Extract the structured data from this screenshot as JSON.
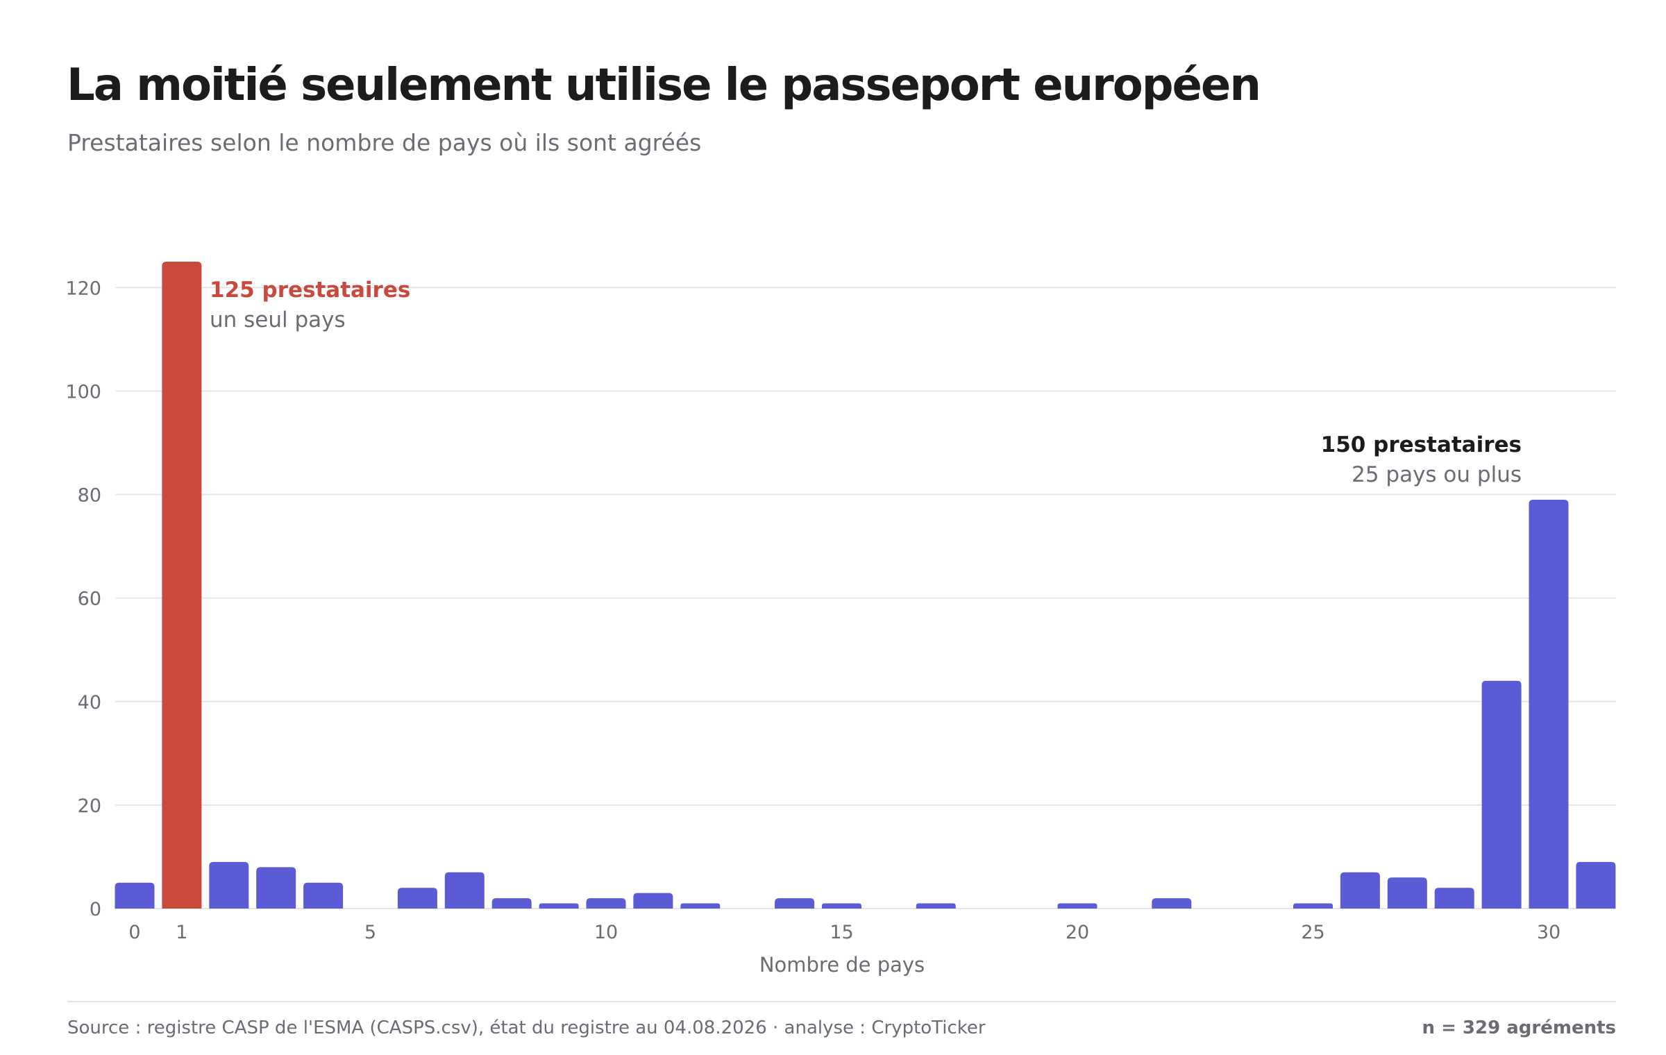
{
  "header": {
    "title": "La moitié seulement utilise le passeport européen",
    "subtitle": "Prestataires selon le nombre de pays où ils sont agréés"
  },
  "footer": {
    "source": "Source : registre CASP de l'ESMA (CASPS.csv), état du registre au 04.08.2026 · analyse : CryptoTicker",
    "count": "n = 329 agréments"
  },
  "colors": {
    "bar": "#5b5bd6",
    "highlight": "#c94a3d",
    "text": "#1c1c1f",
    "muted": "#6b6b73",
    "grid": "#e6e6e9"
  },
  "chart_data": {
    "type": "bar",
    "x": [
      0,
      1,
      2,
      3,
      4,
      5,
      6,
      7,
      8,
      9,
      10,
      11,
      12,
      13,
      14,
      15,
      16,
      17,
      18,
      19,
      20,
      21,
      22,
      23,
      24,
      25,
      26,
      27,
      28,
      29,
      30,
      31
    ],
    "values": [
      5,
      125,
      9,
      8,
      5,
      0,
      4,
      7,
      2,
      1,
      2,
      3,
      1,
      0,
      2,
      1,
      0,
      1,
      0,
      0,
      1,
      0,
      2,
      0,
      0,
      1,
      7,
      6,
      4,
      44,
      79,
      9
    ],
    "highlight_x": 1,
    "xlabel": "Nombre de pays",
    "ylabel": "",
    "xlim": [
      0,
      31
    ],
    "ylim": [
      0,
      125
    ],
    "yticks": [
      0,
      20,
      40,
      60,
      80,
      100,
      120
    ],
    "xticks": [
      0,
      1,
      5,
      10,
      15,
      20,
      25,
      30
    ],
    "grid": true,
    "annotations": [
      {
        "target_x": 1,
        "label": "125 prestataires",
        "sublabel": "un seul pays",
        "color": "#c94a3d"
      },
      {
        "target_x": 29,
        "label": "150 prestataires",
        "sublabel": "25 pays ou plus",
        "color": "#1c1c1f"
      }
    ]
  }
}
